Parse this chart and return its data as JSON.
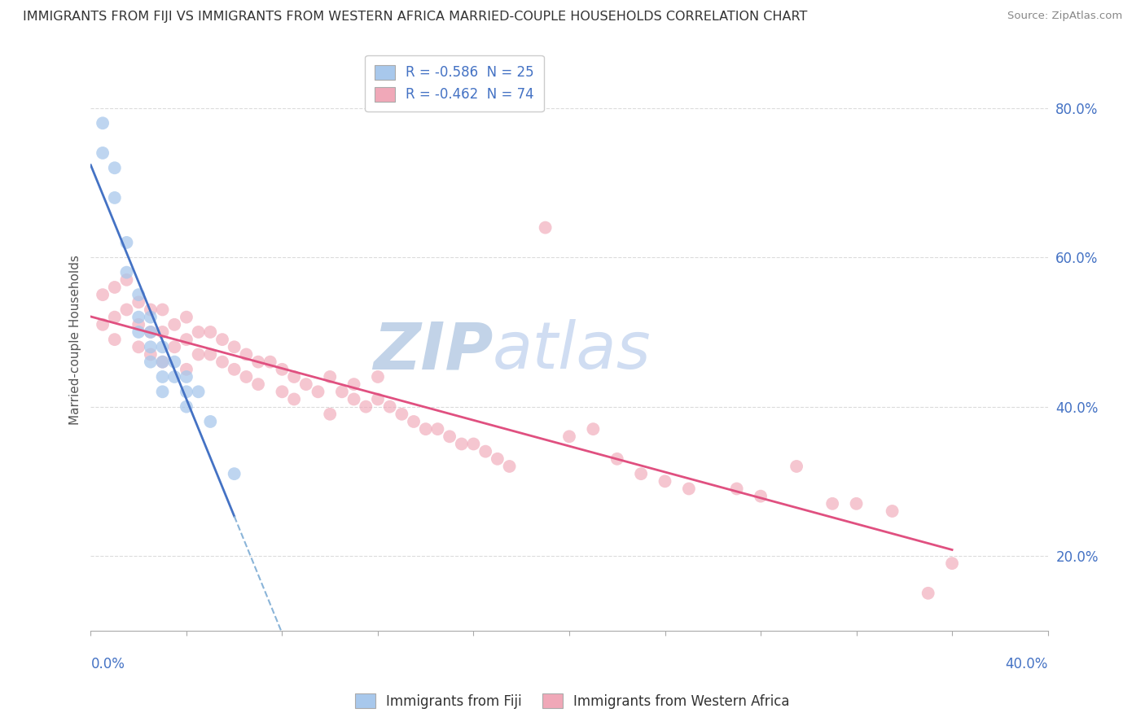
{
  "title": "IMMIGRANTS FROM FIJI VS IMMIGRANTS FROM WESTERN AFRICA MARRIED-COUPLE HOUSEHOLDS CORRELATION CHART",
  "source": "Source: ZipAtlas.com",
  "ylabel": "Married-couple Households",
  "xlim": [
    0.0,
    0.4
  ],
  "ylim": [
    0.1,
    0.88
  ],
  "fiji_R": "-0.586",
  "fiji_N": "25",
  "wa_R": "-0.462",
  "wa_N": "74",
  "fiji_color": "#A8C8EC",
  "wa_color": "#F0A8B8",
  "fiji_line_color": "#4472C4",
  "wa_line_color": "#E05080",
  "watermark_zip_color": "#BDD0E8",
  "watermark_atlas_color": "#C8D8F0",
  "background_color": "#FFFFFF",
  "grid_color": "#D8D8D8",
  "fiji_points_x": [
    0.005,
    0.005,
    0.01,
    0.01,
    0.015,
    0.015,
    0.02,
    0.02,
    0.02,
    0.025,
    0.025,
    0.025,
    0.025,
    0.03,
    0.03,
    0.03,
    0.03,
    0.035,
    0.035,
    0.04,
    0.04,
    0.04,
    0.045,
    0.05,
    0.06
  ],
  "fiji_points_y": [
    0.78,
    0.74,
    0.72,
    0.68,
    0.62,
    0.58,
    0.55,
    0.52,
    0.5,
    0.52,
    0.5,
    0.48,
    0.46,
    0.48,
    0.46,
    0.44,
    0.42,
    0.46,
    0.44,
    0.44,
    0.42,
    0.4,
    0.42,
    0.38,
    0.31
  ],
  "wa_points_x": [
    0.005,
    0.005,
    0.01,
    0.01,
    0.01,
    0.015,
    0.015,
    0.02,
    0.02,
    0.02,
    0.025,
    0.025,
    0.025,
    0.03,
    0.03,
    0.03,
    0.035,
    0.035,
    0.04,
    0.04,
    0.04,
    0.045,
    0.045,
    0.05,
    0.05,
    0.055,
    0.055,
    0.06,
    0.06,
    0.065,
    0.065,
    0.07,
    0.07,
    0.075,
    0.08,
    0.08,
    0.085,
    0.085,
    0.09,
    0.095,
    0.1,
    0.1,
    0.105,
    0.11,
    0.11,
    0.115,
    0.12,
    0.12,
    0.125,
    0.13,
    0.135,
    0.14,
    0.145,
    0.15,
    0.155,
    0.16,
    0.165,
    0.17,
    0.175,
    0.19,
    0.2,
    0.21,
    0.22,
    0.23,
    0.24,
    0.25,
    0.27,
    0.28,
    0.295,
    0.31,
    0.32,
    0.335,
    0.35,
    0.36
  ],
  "wa_points_y": [
    0.55,
    0.51,
    0.56,
    0.52,
    0.49,
    0.57,
    0.53,
    0.54,
    0.51,
    0.48,
    0.53,
    0.5,
    0.47,
    0.53,
    0.5,
    0.46,
    0.51,
    0.48,
    0.52,
    0.49,
    0.45,
    0.5,
    0.47,
    0.5,
    0.47,
    0.49,
    0.46,
    0.48,
    0.45,
    0.47,
    0.44,
    0.46,
    0.43,
    0.46,
    0.45,
    0.42,
    0.44,
    0.41,
    0.43,
    0.42,
    0.44,
    0.39,
    0.42,
    0.41,
    0.43,
    0.4,
    0.41,
    0.44,
    0.4,
    0.39,
    0.38,
    0.37,
    0.37,
    0.36,
    0.35,
    0.35,
    0.34,
    0.33,
    0.32,
    0.64,
    0.36,
    0.37,
    0.33,
    0.31,
    0.3,
    0.29,
    0.29,
    0.28,
    0.32,
    0.27,
    0.27,
    0.26,
    0.15,
    0.19
  ],
  "ytick_values": [
    0.2,
    0.4,
    0.6,
    0.8
  ],
  "ytick_labels": [
    "20.0%",
    "40.0%",
    "60.0%",
    "80.0%"
  ],
  "xtick_label_left": "0.0%",
  "xtick_label_right": "40.0%",
  "fiji_line_x_end": 0.065,
  "wa_line_x_end": 0.36,
  "dashed_line_color": "#8AB4D8"
}
